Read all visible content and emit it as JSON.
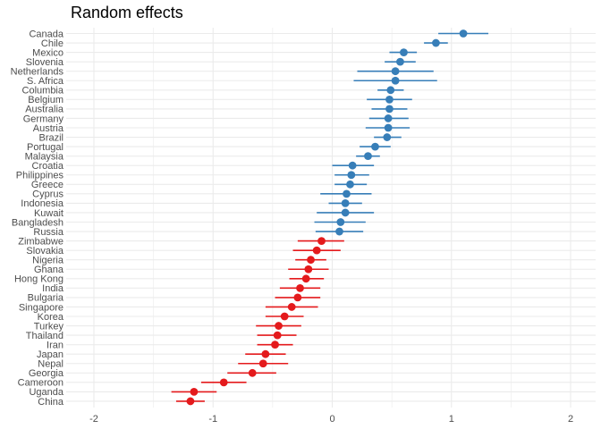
{
  "chart_data": {
    "type": "scatter",
    "subtype": "dot-and-whisker",
    "title": "Random effects",
    "xlabel": "",
    "ylabel": "",
    "xlim": [
      -2.2,
      2.2
    ],
    "x_ticks": [
      -2,
      -1,
      0,
      1,
      2
    ],
    "x_tick_labels": [
      "-2",
      "-1",
      "0",
      "1",
      "2"
    ],
    "grid": true,
    "legend": "none",
    "colors": {
      "positive": "#377eb8",
      "negative": "#e41a1c",
      "grid": "#ebebeb"
    },
    "points": [
      {
        "label": "Canada",
        "value": 1.1,
        "low": 0.89,
        "high": 1.31
      },
      {
        "label": "Chile",
        "value": 0.87,
        "low": 0.77,
        "high": 0.97
      },
      {
        "label": "Mexico",
        "value": 0.6,
        "low": 0.48,
        "high": 0.71
      },
      {
        "label": "Slovenia",
        "value": 0.57,
        "low": 0.44,
        "high": 0.7
      },
      {
        "label": "Netherlands",
        "value": 0.53,
        "low": 0.21,
        "high": 0.85
      },
      {
        "label": "S. Africa",
        "value": 0.53,
        "low": 0.18,
        "high": 0.88
      },
      {
        "label": "Columbia",
        "value": 0.49,
        "low": 0.38,
        "high": 0.6
      },
      {
        "label": "Belgium",
        "value": 0.48,
        "low": 0.29,
        "high": 0.67
      },
      {
        "label": "Australia",
        "value": 0.48,
        "low": 0.33,
        "high": 0.63
      },
      {
        "label": "Germany",
        "value": 0.47,
        "low": 0.31,
        "high": 0.64
      },
      {
        "label": "Austria",
        "value": 0.47,
        "low": 0.28,
        "high": 0.65
      },
      {
        "label": "Brazil",
        "value": 0.46,
        "low": 0.35,
        "high": 0.58
      },
      {
        "label": "Portugal",
        "value": 0.36,
        "low": 0.23,
        "high": 0.49
      },
      {
        "label": "Malaysia",
        "value": 0.3,
        "low": 0.2,
        "high": 0.4
      },
      {
        "label": "Croatia",
        "value": 0.17,
        "low": 0.0,
        "high": 0.35
      },
      {
        "label": "Philippines",
        "value": 0.16,
        "low": 0.02,
        "high": 0.31
      },
      {
        "label": "Greece",
        "value": 0.15,
        "low": 0.02,
        "high": 0.29
      },
      {
        "label": "Cyprus",
        "value": 0.12,
        "low": -0.1,
        "high": 0.33
      },
      {
        "label": "Indonesia",
        "value": 0.11,
        "low": -0.03,
        "high": 0.25
      },
      {
        "label": "Kuwait",
        "value": 0.11,
        "low": -0.13,
        "high": 0.35
      },
      {
        "label": "Bangladesh",
        "value": 0.07,
        "low": -0.15,
        "high": 0.28
      },
      {
        "label": "Russia",
        "value": 0.06,
        "low": -0.14,
        "high": 0.26
      },
      {
        "label": "Zimbabwe",
        "value": -0.09,
        "low": -0.29,
        "high": 0.1
      },
      {
        "label": "Slovakia",
        "value": -0.13,
        "low": -0.33,
        "high": 0.07
      },
      {
        "label": "Nigeria",
        "value": -0.18,
        "low": -0.31,
        "high": -0.05
      },
      {
        "label": "Ghana",
        "value": -0.2,
        "low": -0.37,
        "high": -0.03
      },
      {
        "label": "Hong Kong",
        "value": -0.22,
        "low": -0.36,
        "high": -0.07
      },
      {
        "label": "India",
        "value": -0.27,
        "low": -0.44,
        "high": -0.1
      },
      {
        "label": "Bulgaria",
        "value": -0.29,
        "low": -0.48,
        "high": -0.1
      },
      {
        "label": "Singapore",
        "value": -0.34,
        "low": -0.56,
        "high": -0.12
      },
      {
        "label": "Korea",
        "value": -0.4,
        "low": -0.56,
        "high": -0.24
      },
      {
        "label": "Turkey",
        "value": -0.45,
        "low": -0.64,
        "high": -0.26
      },
      {
        "label": "Thailand",
        "value": -0.46,
        "low": -0.63,
        "high": -0.3
      },
      {
        "label": "Iran",
        "value": -0.48,
        "low": -0.63,
        "high": -0.33
      },
      {
        "label": "Japan",
        "value": -0.56,
        "low": -0.73,
        "high": -0.39
      },
      {
        "label": "Nepal",
        "value": -0.58,
        "low": -0.79,
        "high": -0.37
      },
      {
        "label": "Georgia",
        "value": -0.67,
        "low": -0.88,
        "high": -0.47
      },
      {
        "label": "Cameroon",
        "value": -0.91,
        "low": -1.1,
        "high": -0.72
      },
      {
        "label": "Uganda",
        "value": -1.16,
        "low": -1.35,
        "high": -0.97
      },
      {
        "label": "China",
        "value": -1.19,
        "low": -1.31,
        "high": -1.07
      }
    ]
  }
}
